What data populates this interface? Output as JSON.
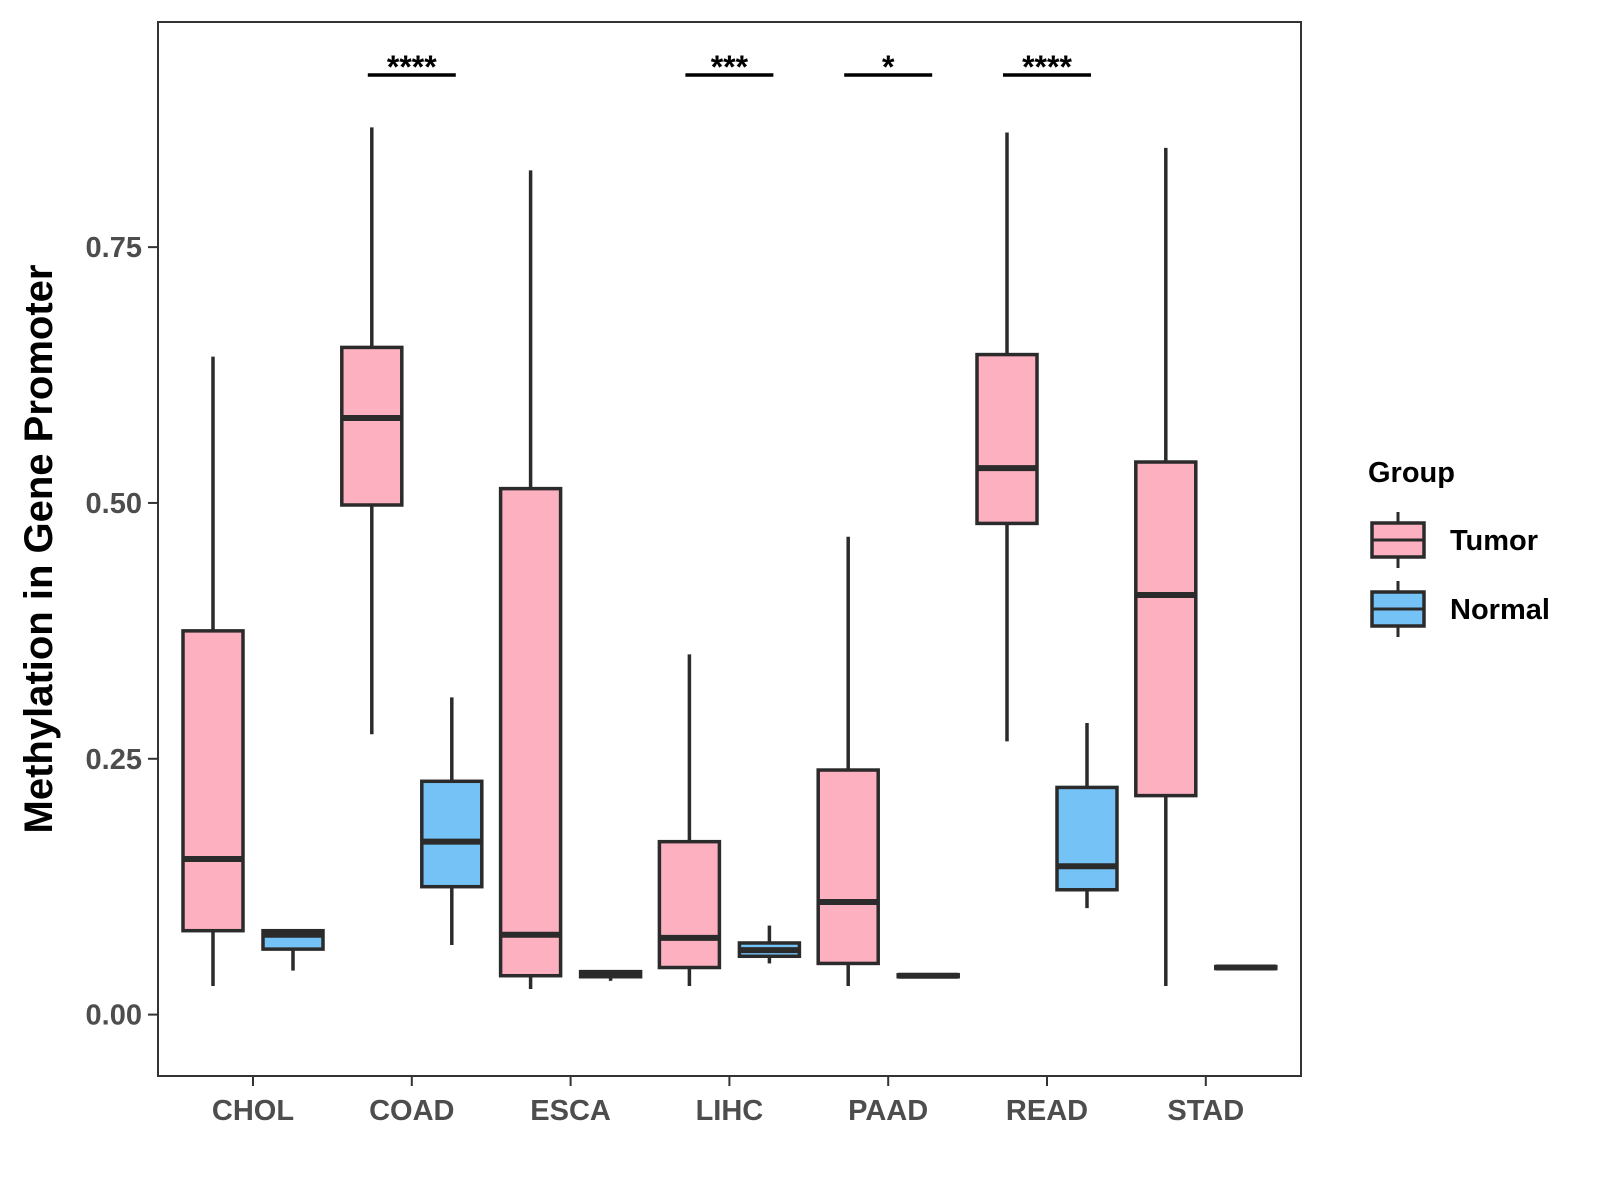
{
  "chart_data": {
    "type": "boxplot",
    "title": "",
    "xlabel": "",
    "ylabel": "Methylation in Gene Promoter",
    "ylim": [
      -0.06,
      0.97
    ],
    "yticks": [
      0.0,
      0.25,
      0.5,
      0.75
    ],
    "ytick_labels": [
      "0.00",
      "0.25",
      "0.50",
      "0.75"
    ],
    "categories": [
      "CHOL",
      "COAD",
      "ESCA",
      "LIHC",
      "PAAD",
      "READ",
      "STAD"
    ],
    "legend": {
      "title": "Group",
      "position": "right",
      "entries": [
        {
          "name": "Tumor",
          "color": "#FDB0C0"
        },
        {
          "name": "Normal",
          "color": "#75C2F6"
        }
      ]
    },
    "series": [
      {
        "name": "Tumor",
        "color": "#FDB0C0",
        "boxes": [
          {
            "category": "CHOL",
            "min": 0.028,
            "q1": 0.082,
            "median": 0.152,
            "q3": 0.375,
            "max": 0.643
          },
          {
            "category": "COAD",
            "min": 0.274,
            "q1": 0.498,
            "median": 0.583,
            "q3": 0.652,
            "max": 0.867
          },
          {
            "category": "ESCA",
            "min": 0.025,
            "q1": 0.038,
            "median": 0.078,
            "q3": 0.514,
            "max": 0.825
          },
          {
            "category": "LIHC",
            "min": 0.028,
            "q1": 0.046,
            "median": 0.075,
            "q3": 0.169,
            "max": 0.352
          },
          {
            "category": "PAAD",
            "min": 0.028,
            "q1": 0.05,
            "median": 0.11,
            "q3": 0.239,
            "max": 0.467
          },
          {
            "category": "READ",
            "min": 0.267,
            "q1": 0.48,
            "median": 0.534,
            "q3": 0.645,
            "max": 0.862
          },
          {
            "category": "STAD",
            "min": 0.028,
            "q1": 0.214,
            "median": 0.41,
            "q3": 0.54,
            "max": 0.847
          }
        ]
      },
      {
        "name": "Normal",
        "color": "#75C2F6",
        "boxes": [
          {
            "category": "CHOL",
            "min": 0.043,
            "q1": 0.064,
            "median": 0.078,
            "q3": 0.082,
            "max": 0.083
          },
          {
            "category": "COAD",
            "min": 0.068,
            "q1": 0.125,
            "median": 0.169,
            "q3": 0.228,
            "max": 0.31
          },
          {
            "category": "ESCA",
            "min": 0.033,
            "q1": 0.037,
            "median": 0.04,
            "q3": 0.042,
            "max": 0.043
          },
          {
            "category": "LIHC",
            "min": 0.05,
            "q1": 0.057,
            "median": 0.063,
            "q3": 0.07,
            "max": 0.087
          },
          {
            "category": "PAAD",
            "min": 0.036,
            "q1": 0.037,
            "median": 0.038,
            "q3": 0.039,
            "max": 0.04
          },
          {
            "category": "READ",
            "min": 0.104,
            "q1": 0.122,
            "median": 0.145,
            "q3": 0.222,
            "max": 0.285
          },
          {
            "category": "STAD",
            "min": 0.044,
            "q1": 0.045,
            "median": 0.046,
            "q3": 0.047,
            "max": 0.048
          }
        ]
      }
    ],
    "annotations": [
      {
        "category": "COAD",
        "text": "****"
      },
      {
        "category": "LIHC",
        "text": "***"
      },
      {
        "category": "PAAD",
        "text": "*"
      },
      {
        "category": "READ",
        "text": "****"
      }
    ]
  }
}
